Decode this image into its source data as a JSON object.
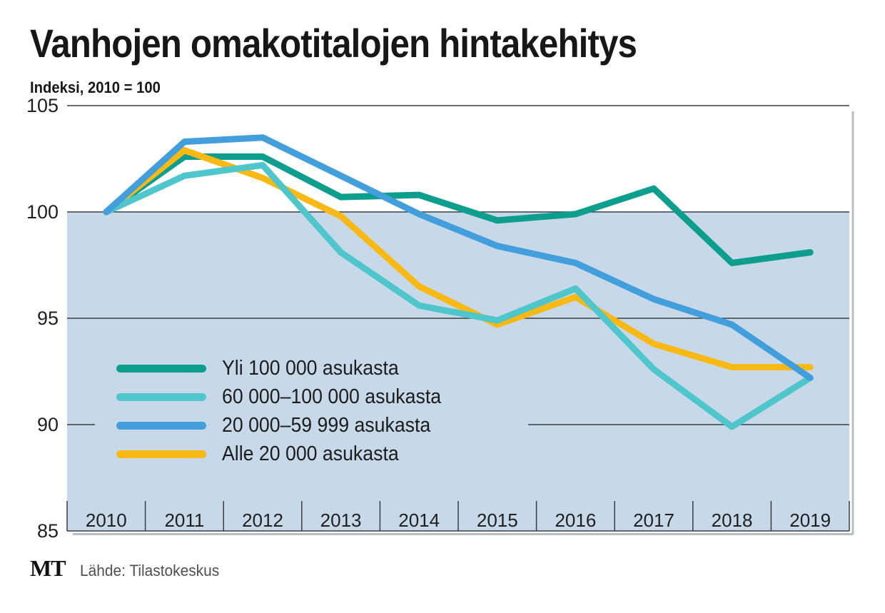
{
  "title": "Vanhojen omakotitalojen hintakehitys",
  "subtitle": "Indeksi, 2010 = 100",
  "footer": {
    "logo": "MT",
    "source": "Lähde: Tilastokeskus"
  },
  "chart_data": {
    "type": "line",
    "title": "Vanhojen omakotitalojen hintakehitys",
    "subtitle_note": "Indeksi, 2010 = 100",
    "categories": [
      "2010",
      "2011",
      "2012",
      "2013",
      "2014",
      "2015",
      "2016",
      "2017",
      "2018",
      "2019"
    ],
    "series": [
      {
        "name": "Yli 100 000 asukasta",
        "color": "#0d9e8e",
        "values": [
          100,
          102.6,
          102.6,
          100.7,
          100.8,
          99.6,
          99.9,
          101.1,
          97.6,
          98.1
        ]
      },
      {
        "name": "60 000–100 000 asukasta",
        "color": "#4fc5cc",
        "values": [
          100,
          101.7,
          102.2,
          98.1,
          95.6,
          94.9,
          96.4,
          92.6,
          89.9,
          92.2
        ]
      },
      {
        "name": "20 000–59 999 asukasta",
        "color": "#429fdb",
        "values": [
          100,
          103.3,
          103.5,
          101.7,
          99.9,
          98.4,
          97.6,
          95.9,
          94.7,
          92.2
        ]
      },
      {
        "name": "Alle 20 000 asukasta",
        "color": "#f9b915",
        "values": [
          100,
          102.9,
          101.6,
          99.8,
          96.5,
          94.7,
          96.0,
          93.8,
          92.7,
          92.7
        ]
      }
    ],
    "yticks": [
      105,
      100,
      95,
      90,
      85
    ],
    "ylim": [
      85,
      105
    ],
    "grid": "horizontal",
    "legend_position": "inside-left",
    "fill_below_value": 100,
    "fill_color": "#c7d9e9",
    "gridline_color": "#383d42",
    "axis_text_color": "#1f1f1f",
    "draw_order": [
      0,
      3,
      1,
      2
    ],
    "line_width": 9
  }
}
